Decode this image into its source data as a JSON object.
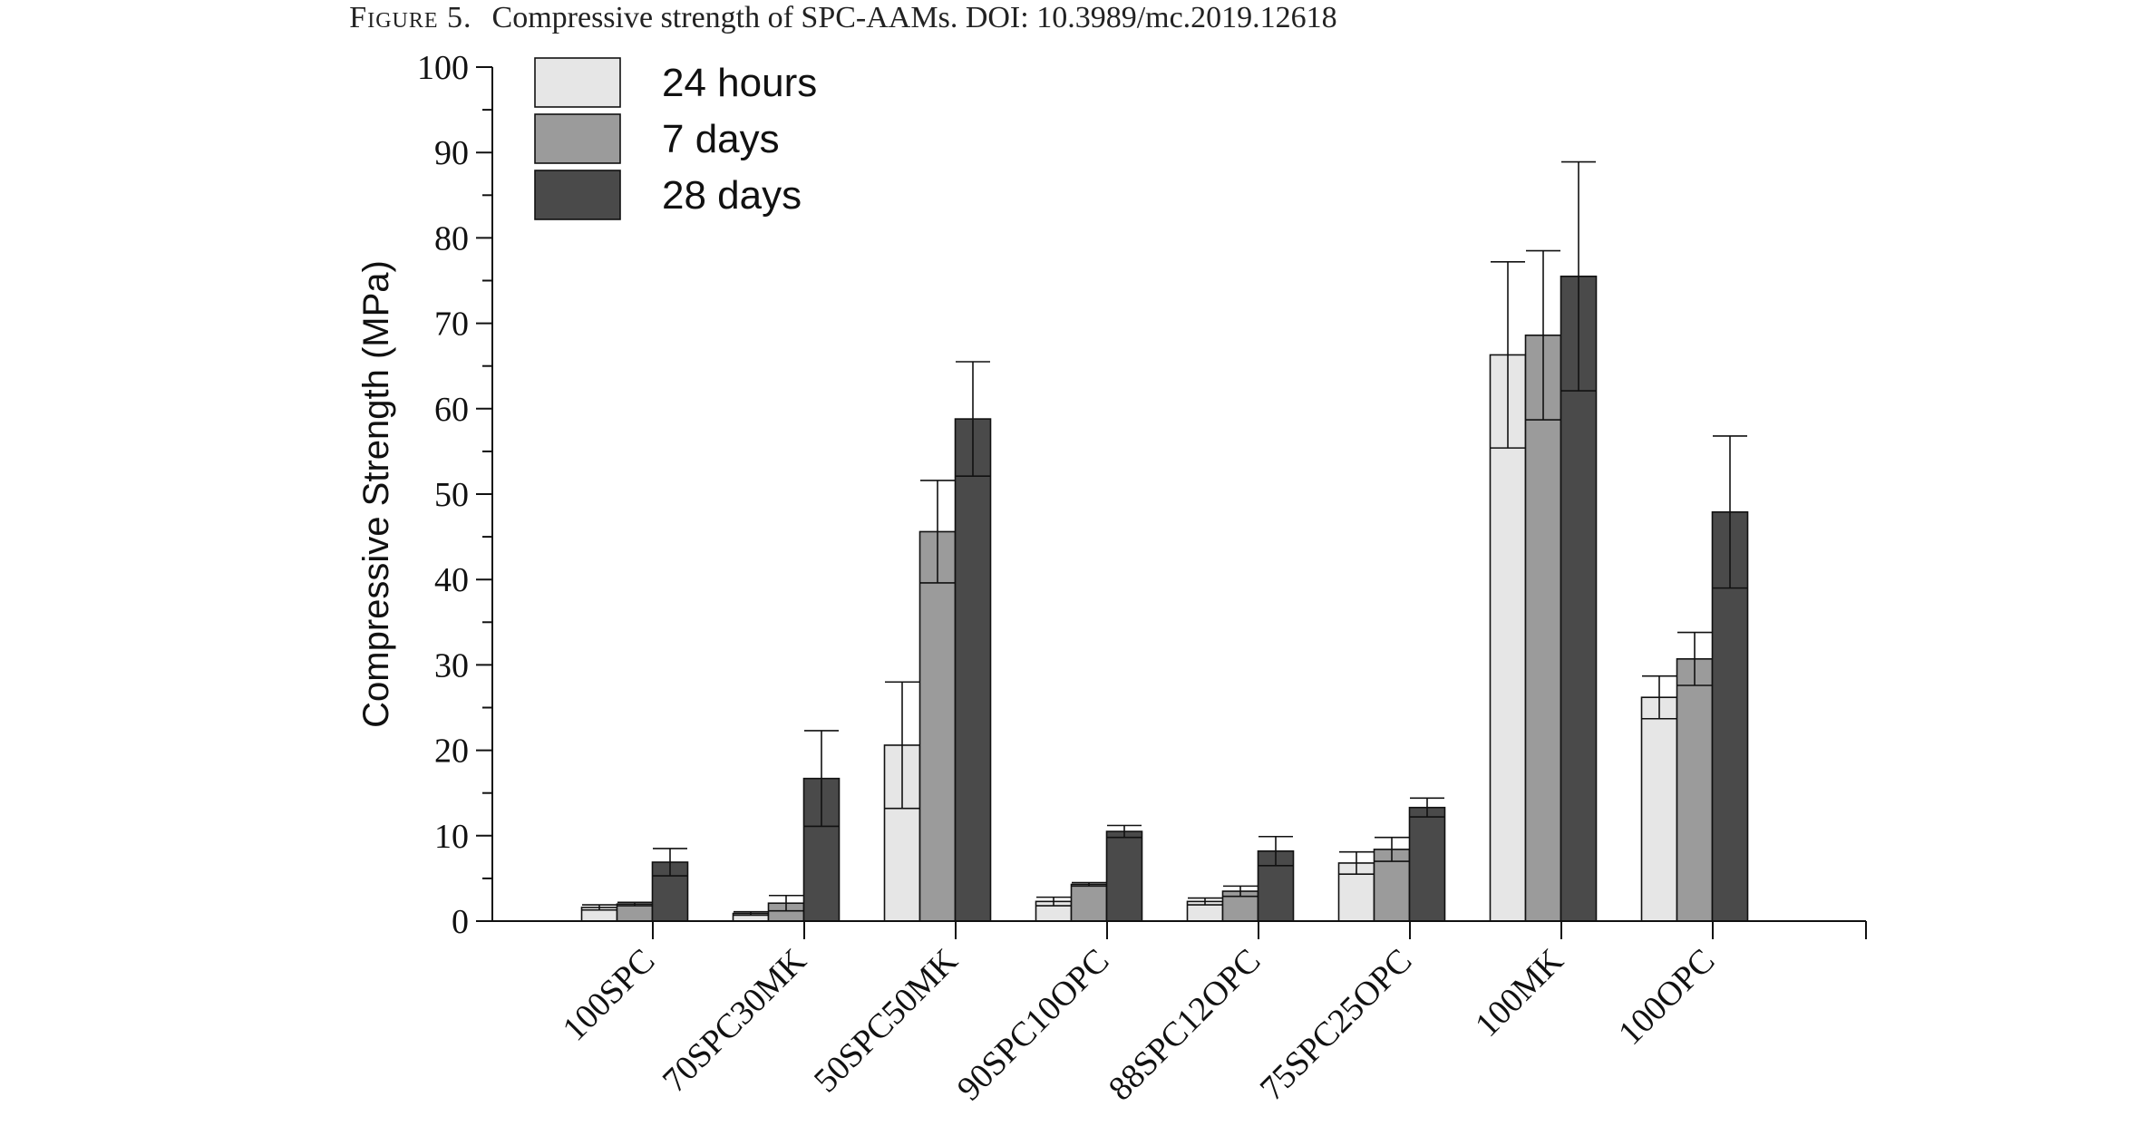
{
  "caption": {
    "figure_label": "Figure 5.",
    "text": "Compressive strength of SPC-AAMs. DOI: 10.3989/mc.2019.12618"
  },
  "colors": {
    "24 hours": "#e6e6e6",
    "7 days": "#9b9b9b",
    "28 days": "#4a4a4a",
    "outline": "#111111"
  },
  "chart_data": {
    "type": "bar",
    "title": "",
    "xlabel": "",
    "ylabel": "Compressive Strength (MPa)",
    "ylim": [
      0,
      100
    ],
    "yticks": [
      0,
      10,
      20,
      30,
      40,
      50,
      60,
      70,
      80,
      90,
      100
    ],
    "grid": false,
    "legend_position": "top-left",
    "error_bars": true,
    "categories": [
      "100SPC",
      "70SPC30MK",
      "50SPC50MK",
      "90SPC10OPC",
      "88SPC12OPC",
      "75SPC25OPC",
      "100MK",
      "100OPC"
    ],
    "series": [
      {
        "name": "24 hours",
        "values": [
          1.6,
          0.9,
          20.6,
          2.3,
          2.3,
          6.8,
          66.3,
          26.2
        ],
        "errors": [
          0.3,
          0.2,
          7.4,
          0.5,
          0.4,
          1.3,
          10.9,
          2.5
        ]
      },
      {
        "name": "7 days",
        "values": [
          2.0,
          2.1,
          45.6,
          4.3,
          3.5,
          8.4,
          68.6,
          30.7
        ],
        "errors": [
          0.2,
          0.9,
          6.0,
          0.2,
          0.6,
          1.4,
          9.9,
          3.1
        ]
      },
      {
        "name": "28 days",
        "values": [
          6.9,
          16.7,
          58.8,
          10.5,
          8.2,
          13.3,
          75.5,
          47.9
        ],
        "errors": [
          1.6,
          5.6,
          6.7,
          0.7,
          1.7,
          1.1,
          13.4,
          8.9
        ]
      }
    ]
  }
}
